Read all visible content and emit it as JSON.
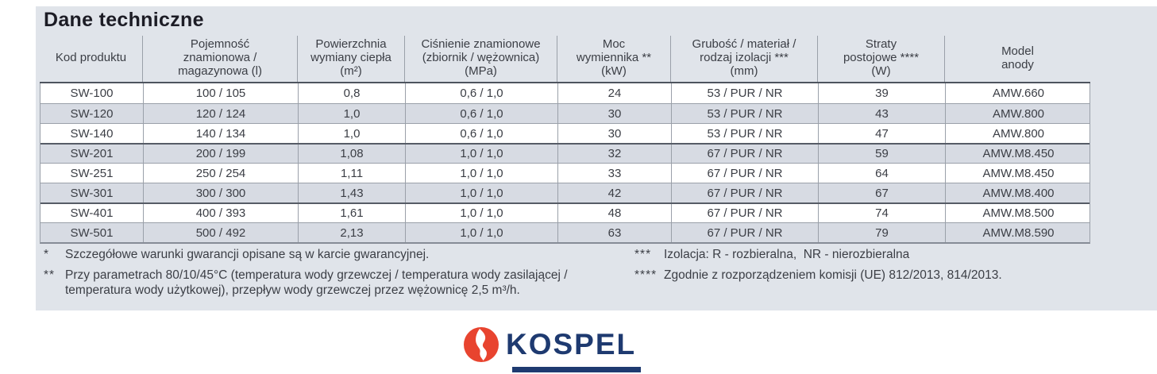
{
  "title": "Dane techniczne",
  "table": {
    "headers": [
      "Kod produktu",
      "Pojemność\nznamionowa /\nmagazynowa (l)",
      "Powierzchnia\nwymiany ciepła\n(m²)",
      "Ciśnienie znamionowe\n(zbiornik / wężownica)\n(MPa)",
      "Moc\nwymiennika **\n(kW)",
      "Grubość / materiał /\nrodzaj izolacji ***\n(mm)",
      "Straty\npostojowe ****\n(W)",
      "Model\nanody"
    ],
    "rows": [
      {
        "group_start": false,
        "cells": [
          "SW-100",
          "100 / 105",
          "0,8",
          "0,6 / 1,0",
          "24",
          "53 / PUR / NR",
          "39",
          "AMW.660"
        ]
      },
      {
        "group_start": false,
        "cells": [
          "SW-120",
          "120 / 124",
          "1,0",
          "0,6 / 1,0",
          "30",
          "53 / PUR / NR",
          "43",
          "AMW.800"
        ]
      },
      {
        "group_start": false,
        "cells": [
          "SW-140",
          "140 / 134",
          "1,0",
          "0,6 / 1,0",
          "30",
          "53 / PUR / NR",
          "47",
          "AMW.800"
        ]
      },
      {
        "group_start": true,
        "cells": [
          "SW-201",
          "200 / 199",
          "1,08",
          "1,0 / 1,0",
          "32",
          "67 / PUR / NR",
          "59",
          "AMW.M8.450"
        ]
      },
      {
        "group_start": false,
        "cells": [
          "SW-251",
          "250 / 254",
          "1,11",
          "1,0 / 1,0",
          "33",
          "67 / PUR / NR",
          "64",
          "AMW.M8.450"
        ]
      },
      {
        "group_start": false,
        "cells": [
          "SW-301",
          "300 / 300",
          "1,43",
          "1,0 / 1,0",
          "42",
          "67 / PUR / NR",
          "67",
          "AMW.M8.400"
        ]
      },
      {
        "group_start": true,
        "cells": [
          "SW-401",
          "400 / 393",
          "1,61",
          "1,0 / 1,0",
          "48",
          "67 / PUR / NR",
          "74",
          "AMW.M8.500"
        ]
      },
      {
        "group_start": false,
        "cells": [
          "SW-501",
          "500 / 492",
          "2,13",
          "1,0 / 1,0",
          "63",
          "67 / PUR / NR",
          "79",
          "AMW.M8.590"
        ]
      }
    ]
  },
  "footnotes": {
    "left": [
      {
        "marker": "*",
        "text": "Szczegółowe warunki gwarancji opisane są w karcie gwarancyjnej."
      },
      {
        "marker": "**",
        "text": "Przy parametrach 80/10/45°C (temperatura wody grzewczej / temperatura wody zasilającej /\ntemperatura wody użytkowej), przepływ wody grzewczej przez wężownicę 2,5 m³/h."
      }
    ],
    "right": [
      {
        "marker": "***",
        "text": "Izolacja: R - rozbieralna,  NR - nierozbieralna"
      },
      {
        "marker": "****",
        "text": "Zgodnie z rozporządzeniem komisji (UE) 812/2013, 814/2013."
      }
    ]
  },
  "logo": {
    "text": "KOSPEL"
  },
  "colors": {
    "panel_bg": "#e0e4ea",
    "alt_row_bg": "#d7dbe3",
    "table_text": "#3b3e45",
    "grid_line": "#9aa0a9",
    "heavy_line": "#4e545e",
    "brand_navy": "#1e3a70",
    "brand_red": "#e8442f"
  }
}
